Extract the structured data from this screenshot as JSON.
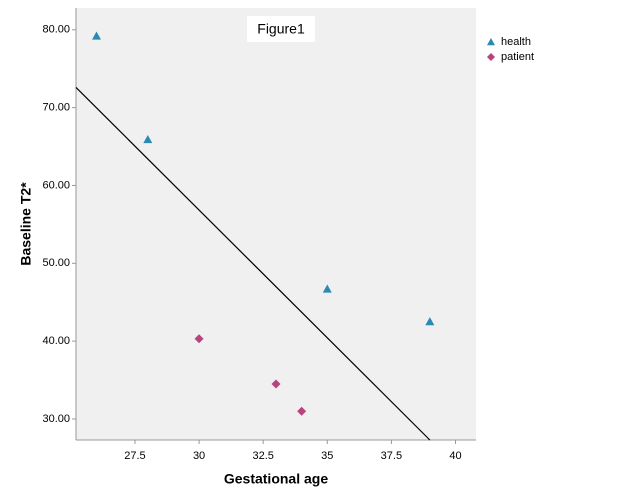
{
  "chart_data": {
    "type": "scatter",
    "annotation": "Figure1",
    "xlabel": "Gestational age",
    "ylabel": "Baseline T2*",
    "xlim": [
      25.2,
      40.8
    ],
    "ylim": [
      27.3,
      82.8
    ],
    "xticks": [
      27.5,
      30,
      32.5,
      35,
      37.5,
      40
    ],
    "yticks": [
      {
        "value": 30,
        "label": "30.00"
      },
      {
        "value": 40,
        "label": "40.00"
      },
      {
        "value": 50,
        "label": "50.00"
      },
      {
        "value": 60,
        "label": "60.00"
      },
      {
        "value": 70,
        "label": "70.00"
      },
      {
        "value": 80,
        "label": "80.00"
      }
    ],
    "series": [
      {
        "name": "health",
        "color": "#2a8ab4",
        "marker": "triangle",
        "x": [
          26,
          28,
          35,
          39
        ],
        "values": [
          79.2,
          65.9,
          46.7,
          42.5
        ]
      },
      {
        "name": "patient",
        "color": "#b8437f",
        "marker": "diamond",
        "x": [
          30,
          33,
          34
        ],
        "values": [
          40.3,
          34.5,
          31.0
        ]
      }
    ],
    "fit_line": {
      "color": "#000000",
      "x": [
        25.2,
        39.0
      ],
      "values": [
        72.6,
        27.3
      ]
    },
    "legend": "top-right"
  }
}
